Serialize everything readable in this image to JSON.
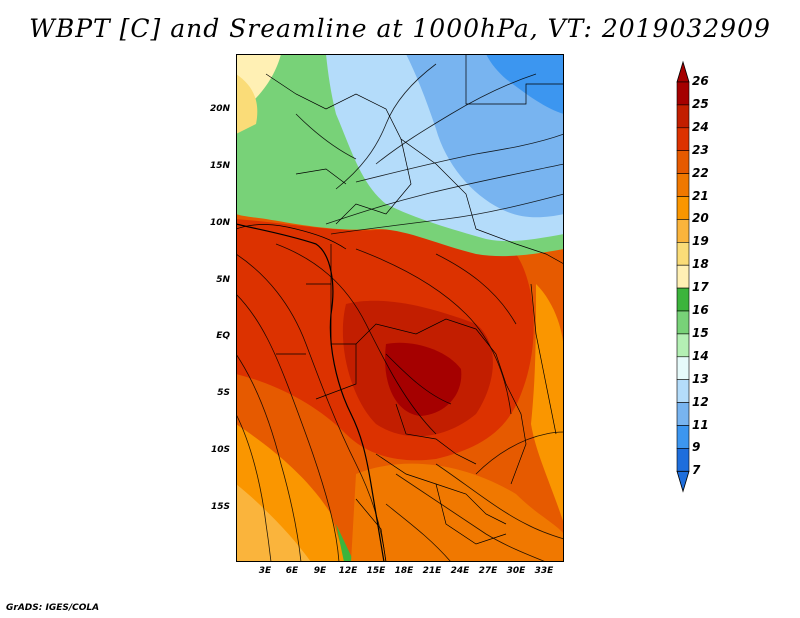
{
  "title": "WBPT [C] and Sreamline at 1000hPa, VT: 2019032909",
  "credit": "GrADS: IGES/COLA",
  "map": {
    "variable": "Wet-bulb potential temperature",
    "units": "C",
    "level": "1000hPa",
    "valid_time": "2019032909",
    "lat_labels": [
      "20N",
      "15N",
      "10N",
      "5N",
      "EQ",
      "5S",
      "10S",
      "15S"
    ],
    "lon_labels": [
      "3E",
      "6E",
      "9E",
      "12E",
      "15E",
      "18E",
      "21E",
      "24E",
      "27E",
      "30E",
      "33E"
    ]
  },
  "colorbar": {
    "levels": [
      "26",
      "25",
      "24",
      "23",
      "22",
      "21",
      "20",
      "19",
      "18",
      "17",
      "16",
      "15",
      "14",
      "13",
      "12",
      "11",
      "9",
      "7"
    ],
    "colors": [
      "#a50000",
      "#c21e00",
      "#dc3200",
      "#e65a00",
      "#f07800",
      "#fa9600",
      "#fab43c",
      "#fadc78",
      "#fff0b4",
      "#3cb43c",
      "#78d278",
      "#b4f0b4",
      "#e6fafa",
      "#b4dcfa",
      "#78b4f0",
      "#3c96f0",
      "#1e6edc"
    ],
    "extends": "both"
  }
}
